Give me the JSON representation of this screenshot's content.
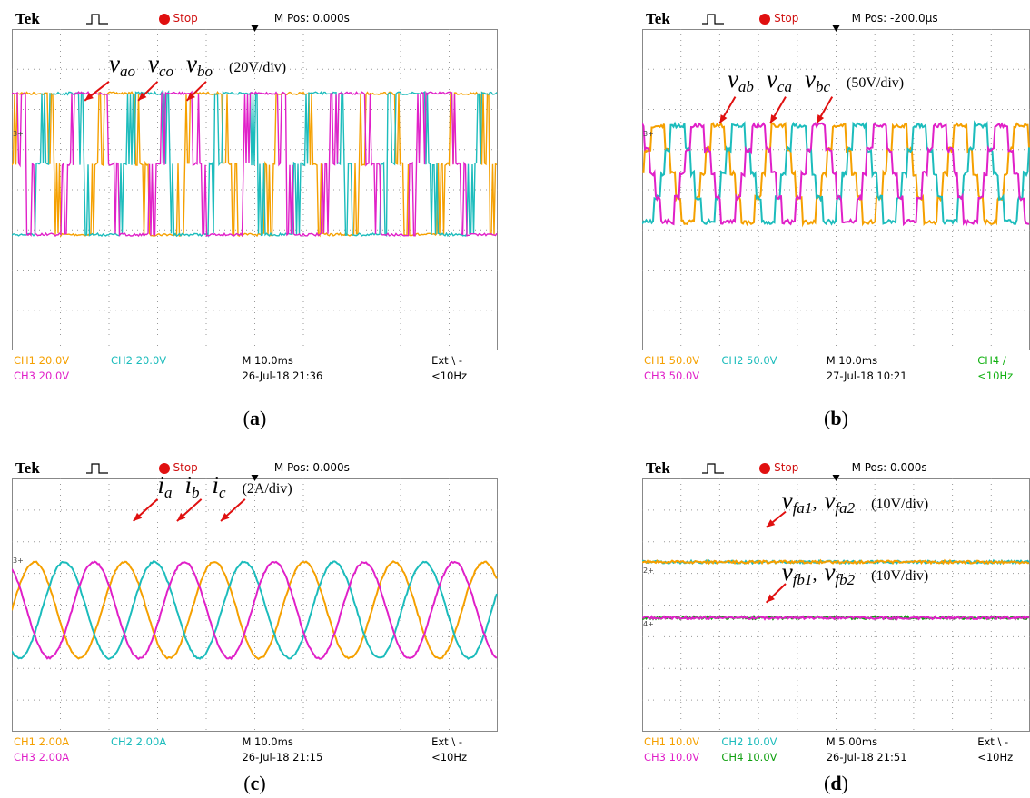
{
  "panels": [
    {
      "header": {
        "brand": "Tek",
        "status": "Stop",
        "mpos": "M Pos: 0.000s"
      },
      "markers": [
        "3+"
      ],
      "label_groups": [
        {
          "items": [
            {
              "main": "v",
              "sub": "ao"
            },
            {
              "main": "v",
              "sub": "co"
            },
            {
              "main": "v",
              "sub": "bo"
            }
          ],
          "scale": "(20V/div)"
        }
      ],
      "readouts": {
        "ch1": "CH1 20.0V",
        "ch2": "CH2 20.0V",
        "time": "M 10.0ms",
        "trigger": "Ext \\ -",
        "ch3": "CH3 20.0V",
        "date": "26-Jul-18 21:36",
        "freq": "<10Hz"
      },
      "caption": [
        "(",
        "a",
        ")"
      ]
    },
    {
      "header": {
        "brand": "Tek",
        "status": "Stop",
        "mpos": "M Pos: -200.0µs"
      },
      "markers": [
        "3+"
      ],
      "label_groups": [
        {
          "items": [
            {
              "main": "v",
              "sub": "ab"
            },
            {
              "main": "v",
              "sub": "ca"
            },
            {
              "main": "v",
              "sub": "bc"
            }
          ],
          "scale": "(50V/div)"
        }
      ],
      "readouts": {
        "ch1": "CH1 50.0V",
        "ch2": "CH2 50.0V",
        "time": "M 10.0ms",
        "trigger": "CH4 /",
        "ch3": "CH3 50.0V",
        "date": "27-Jul-18 10:21",
        "freq": "<10Hz"
      },
      "readout_colors": {
        "trigger": "#10b010",
        "freq": "#10b010"
      },
      "caption": [
        "(",
        "b",
        ")"
      ]
    },
    {
      "header": {
        "brand": "Tek",
        "status": "Stop",
        "mpos": "M Pos: 0.000s"
      },
      "markers": [
        "3+"
      ],
      "label_groups": [
        {
          "items": [
            {
              "main": "i",
              "sub": "a"
            },
            {
              "main": "i",
              "sub": "b"
            },
            {
              "main": "i",
              "sub": "c"
            }
          ],
          "scale": "(2A/div)"
        }
      ],
      "readouts": {
        "ch1": "CH1 2.00A",
        "ch2": "CH2 2.00A",
        "time": "M 10.0ms",
        "trigger": "Ext \\ -",
        "ch3": "CH3 2.00A",
        "date": "26-Jul-18 21:15",
        "freq": "<10Hz"
      },
      "caption": [
        "(",
        "c",
        ")"
      ]
    },
    {
      "header": {
        "brand": "Tek",
        "status": "Stop",
        "mpos": "M Pos: 0.000s"
      },
      "markers": [
        "2+",
        "4+"
      ],
      "label_groups": [
        {
          "items": [
            {
              "main": "v",
              "sub": "fa1"
            },
            {
              "main": "v",
              "sub": "fa2"
            }
          ],
          "separator": ",",
          "scale": "(10V/div)"
        },
        {
          "items": [
            {
              "main": "v",
              "sub": "fb1"
            },
            {
              "main": "v",
              "sub": "fb2"
            }
          ],
          "separator": ",",
          "scale": "(10V/div)"
        }
      ],
      "readouts": {
        "ch1": "CH1 10.0V",
        "ch2": "CH2 10.0V",
        "time": "M 5.00ms",
        "trigger": "Ext \\ -",
        "ch3": "CH3 10.0V",
        "ch4": "CH4 10.0V",
        "date": "26-Jul-18 21:51",
        "freq": "<10Hz"
      },
      "caption": [
        "(",
        "d",
        ")"
      ]
    }
  ]
}
